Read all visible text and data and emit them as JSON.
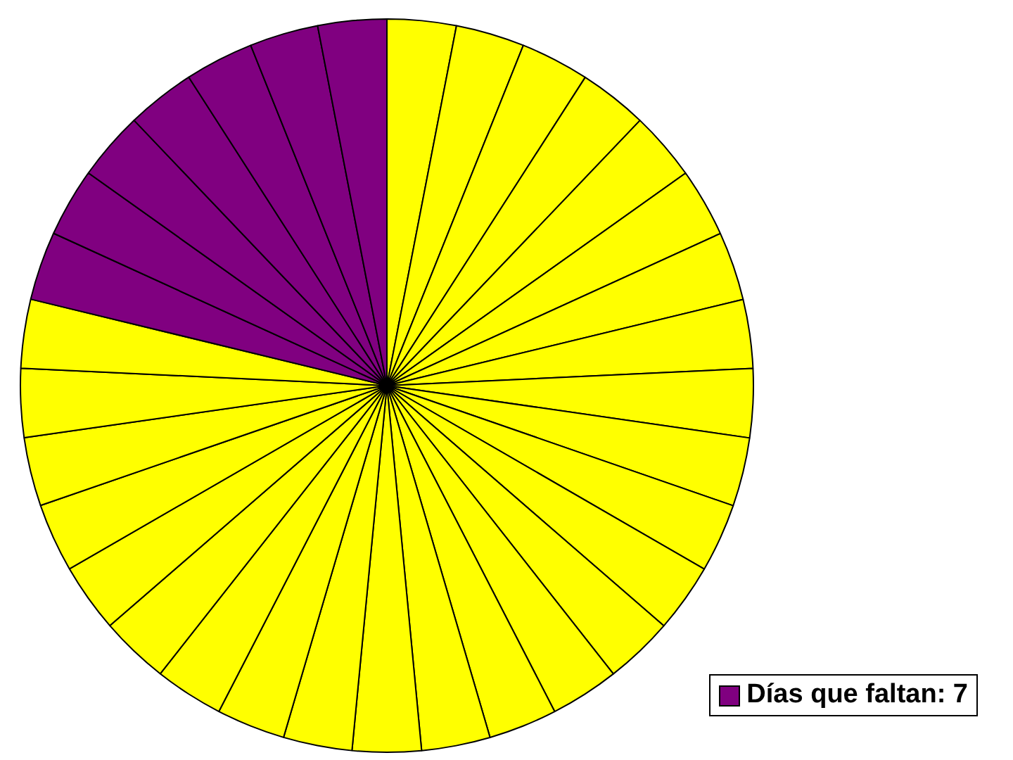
{
  "chart_data": {
    "type": "pie",
    "categories": [
      null,
      null,
      null,
      null,
      null,
      null,
      null,
      null,
      null,
      null,
      null,
      null,
      null,
      null,
      null,
      null,
      null,
      null,
      null,
      null,
      null,
      null,
      null,
      null,
      null,
      null,
      "Días que faltan: 7",
      null,
      null,
      null,
      null,
      null,
      null
    ],
    "values": [
      3.04,
      3.03,
      3.03,
      3.03,
      3.03,
      3.03,
      3.03,
      3.03,
      3.03,
      3.03,
      3.03,
      3.03,
      3.03,
      3.03,
      3.03,
      3.03,
      3.03,
      3.03,
      3.03,
      3.03,
      3.03,
      3.03,
      3.03,
      3.03,
      3.03,
      3.03,
      3.03,
      3.03,
      3.03,
      3.03,
      3.03,
      3.03,
      3.03
    ],
    "colors": [
      "#ffff00",
      "#ffff00",
      "#ffff00",
      "#ffff00",
      "#ffff00",
      "#ffff00",
      "#ffff00",
      "#ffff00",
      "#ffff00",
      "#ffff00",
      "#ffff00",
      "#ffff00",
      "#ffff00",
      "#ffff00",
      "#ffff00",
      "#ffff00",
      "#ffff00",
      "#ffff00",
      "#ffff00",
      "#ffff00",
      "#ffff00",
      "#ffff00",
      "#ffff00",
      "#ffff00",
      "#ffff00",
      "#ffff00",
      "#800080",
      "#800080",
      "#800080",
      "#800080",
      "#800080",
      "#800080",
      "#800080"
    ],
    "legend": "bottom right"
  }
}
